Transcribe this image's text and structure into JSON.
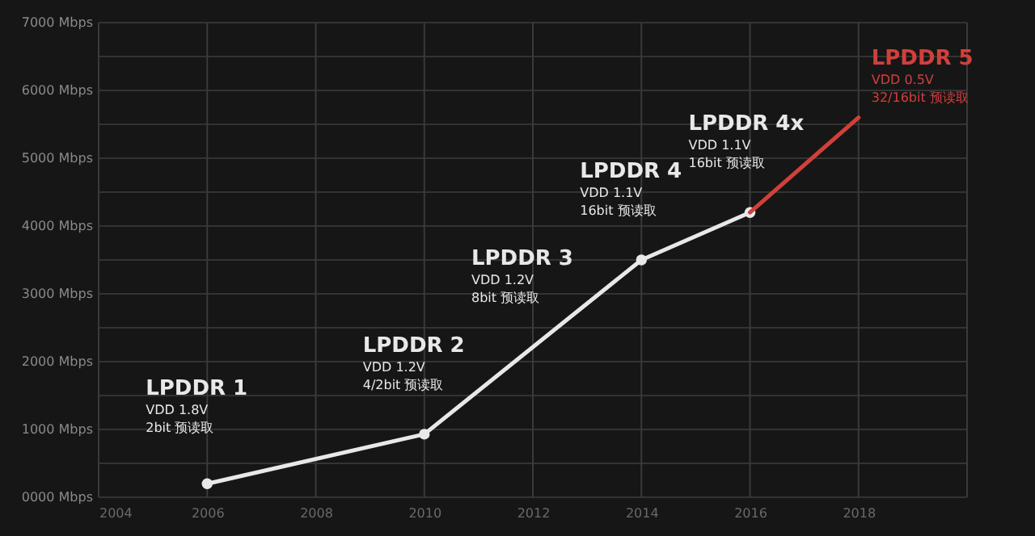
{
  "chart_data": {
    "type": "line",
    "series": [
      {
        "x": [
          2006,
          2010,
          2014,
          2016
        ],
        "values": [
          200,
          930,
          3500,
          4200
        ],
        "color": "#e8e8e8",
        "marker": "circle"
      },
      {
        "x": [
          2016,
          2018
        ],
        "values": [
          4200,
          5600
        ],
        "color": "#d0403a",
        "marker": "none"
      }
    ],
    "xlim": [
      2004,
      2020
    ],
    "xticks": [
      2004,
      2006,
      2008,
      2010,
      2012,
      2014,
      2016,
      2018,
      {
        "value": 2020,
        "label": null
      }
    ],
    "ylim": [
      0,
      7000
    ],
    "yticks": [
      {
        "value": 0,
        "label": "0000 Mbps"
      },
      {
        "value": 500,
        "label": null
      },
      {
        "value": 1000,
        "label": "1000 Mbps"
      },
      {
        "value": 1500,
        "label": null
      },
      {
        "value": 2000,
        "label": "2000 Mbps"
      },
      {
        "value": 2500,
        "label": null
      },
      {
        "value": 3000,
        "label": "3000 Mbps"
      },
      {
        "value": 3500,
        "label": null
      },
      {
        "value": 4000,
        "label": "4000 Mbps"
      },
      {
        "value": 4500,
        "label": null
      },
      {
        "value": 5000,
        "label": "5000 Mbps"
      },
      {
        "value": 5500,
        "label": null
      },
      {
        "value": 6000,
        "label": "6000 Mbps"
      },
      {
        "value": 6500,
        "label": null
      },
      {
        "value": 7000,
        "label": "7000 Mbps"
      }
    ],
    "grid": true,
    "annotations": [
      {
        "text": "LPDDR 1\nVDD 1.8V\n2bit 预读取",
        "x": 2006,
        "y": 200
      },
      {
        "text": "LPDDR 2\nVDD 1.2V\n4/2bit 预读取",
        "x": 2010,
        "y": 930
      },
      {
        "text": "LPDDR 3\nVDD 1.2V\n8bit 预读取",
        "x": 2012,
        "y": 2215
      },
      {
        "text": "LPDDR 4\nVDD 1.1V\n16bit 预读取",
        "x": 2014,
        "y": 3500
      },
      {
        "text": "LPDDR 4x\nVDD 1.1V\n16bit 预读取",
        "x": 2016,
        "y": 4200
      },
      {
        "text": "LPDDR 5\nVDD 0.5V\n32/16bit 预读取",
        "x": 2018,
        "y": 5600
      }
    ]
  }
}
